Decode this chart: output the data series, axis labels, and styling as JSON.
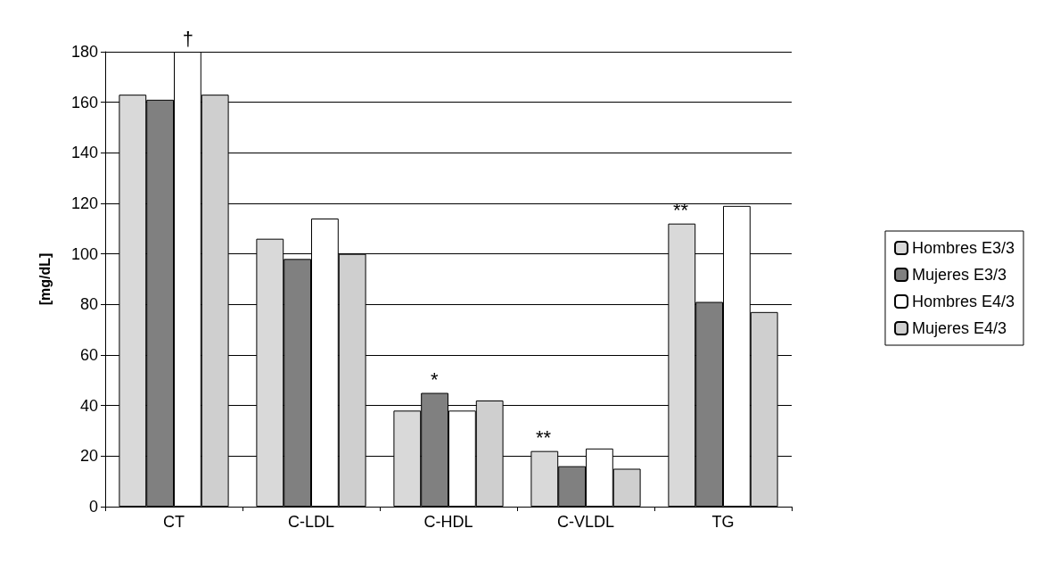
{
  "chart_data": {
    "type": "bar",
    "ylabel": "[mg/dL]",
    "categories": [
      "CT",
      "C-LDL",
      "C-HDL",
      "C-VLDL",
      "TG"
    ],
    "series": [
      {
        "name": "Hombres E3/3",
        "color": "#d9d9d9",
        "values": [
          163,
          106,
          38,
          22,
          112
        ]
      },
      {
        "name": "Mujeres E3/3",
        "color": "#808080",
        "values": [
          161,
          98,
          45,
          16,
          81
        ]
      },
      {
        "name": "Hombres E4/3",
        "color": "#ffffff",
        "values": [
          180,
          114,
          38,
          23,
          119
        ]
      },
      {
        "name": "Mujeres E4/3",
        "color": "#cfcfcf",
        "values": [
          163,
          100,
          42,
          15,
          77
        ]
      }
    ],
    "ylim": [
      0,
      180
    ],
    "yticks": [
      0,
      20,
      40,
      60,
      80,
      100,
      120,
      140,
      160,
      180
    ],
    "grid": "y",
    "legend": "right",
    "annotations": [
      {
        "text": "†",
        "x": "CT",
        "y": 180
      },
      {
        "text": "*",
        "x": "C-HDL",
        "y": 45
      },
      {
        "text": "**",
        "x": "C-VLDL",
        "y": 22
      },
      {
        "text": "**",
        "x": "TG",
        "y": 112
      }
    ]
  }
}
